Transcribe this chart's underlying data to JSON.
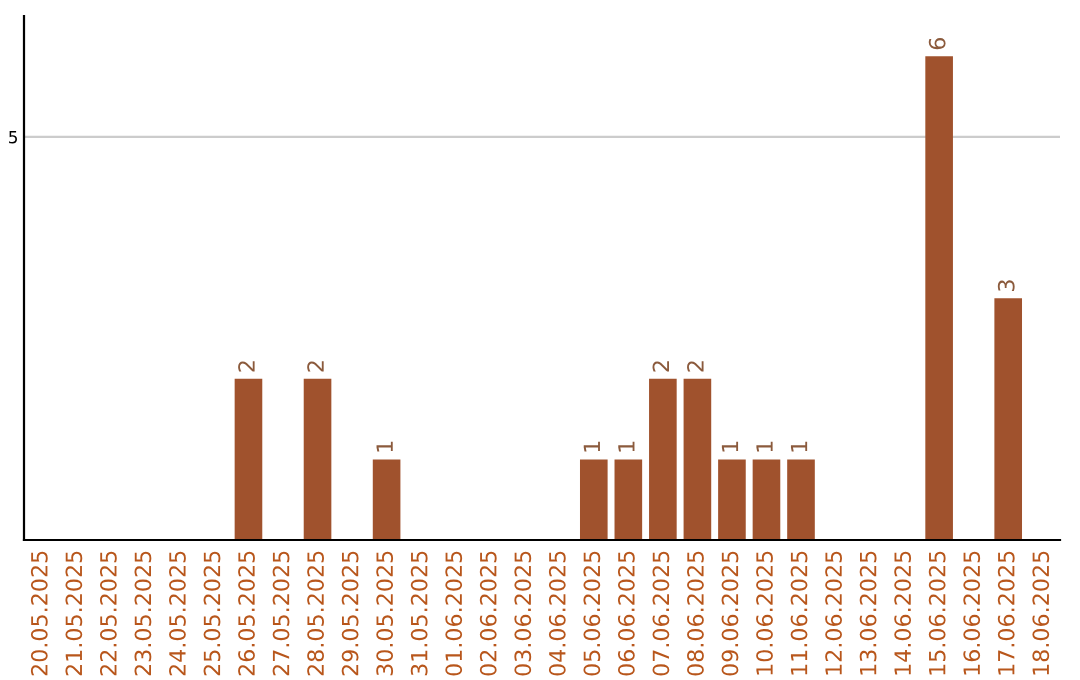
{
  "chart_data": {
    "type": "bar",
    "categories": [
      "20.05.2025",
      "21.05.2025",
      "22.05.2025",
      "23.05.2025",
      "24.05.2025",
      "25.05.2025",
      "26.05.2025",
      "27.05.2025",
      "28.05.2025",
      "29.05.2025",
      "30.05.2025",
      "31.05.2025",
      "01.06.2025",
      "02.06.2025",
      "03.06.2025",
      "04.06.2025",
      "05.06.2025",
      "06.06.2025",
      "07.06.2025",
      "08.06.2025",
      "09.06.2025",
      "10.06.2025",
      "11.06.2025",
      "12.06.2025",
      "13.06.2025",
      "14.06.2025",
      "15.06.2025",
      "16.06.2025",
      "17.06.2025",
      "18.06.2025"
    ],
    "values": [
      0,
      0,
      0,
      0,
      0,
      0,
      2,
      0,
      2,
      0,
      1,
      0,
      0,
      0,
      0,
      0,
      1,
      1,
      2,
      2,
      1,
      1,
      1,
      0,
      0,
      0,
      6,
      0,
      3,
      0
    ],
    "value_labels": [
      null,
      null,
      null,
      null,
      null,
      null,
      "2",
      null,
      "2",
      null,
      "1",
      null,
      null,
      null,
      null,
      null,
      "1",
      "1",
      "2",
      "2",
      "1",
      "1",
      "1",
      null,
      null,
      null,
      "6",
      null,
      "3",
      null
    ],
    "color": "#a0522d",
    "ylim": [
      0,
      6.5
    ],
    "yticks": [
      5
    ],
    "grid": "y"
  }
}
